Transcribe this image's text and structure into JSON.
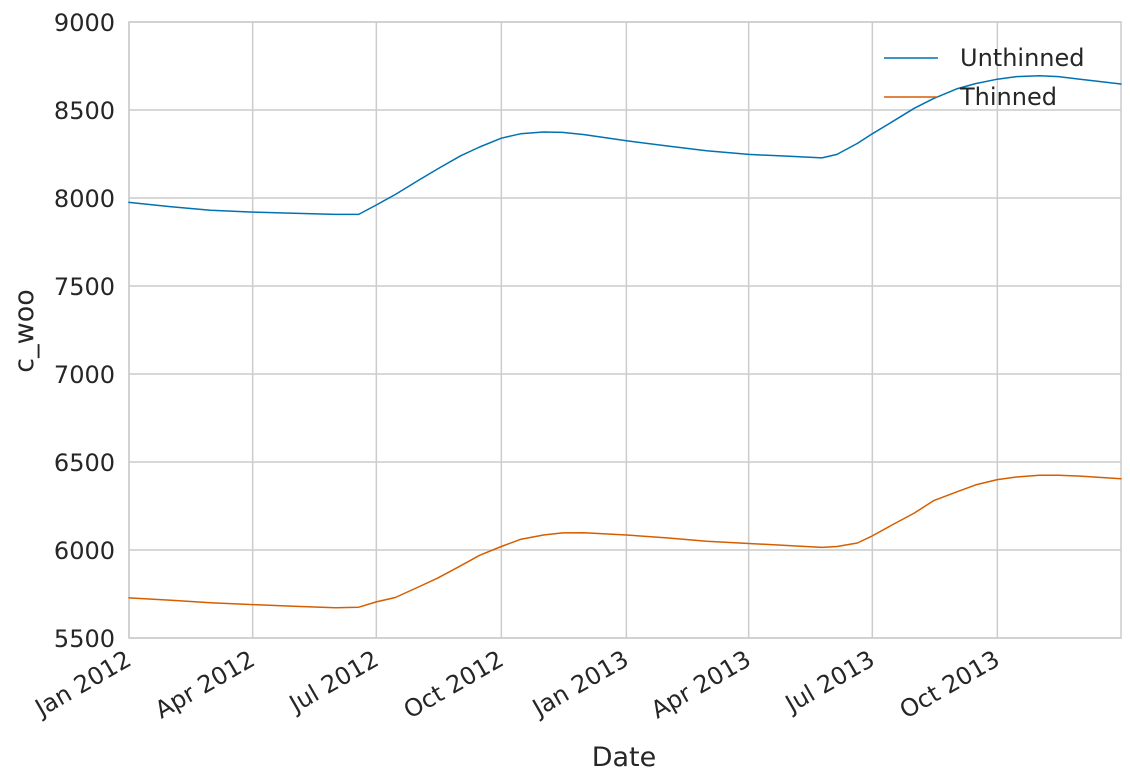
{
  "chart_data": {
    "type": "line",
    "title": "",
    "xlabel": "Date",
    "ylabel": "c_woo",
    "xlim": [
      "2012-01-01",
      "2013-12-31"
    ],
    "ylim": [
      5500,
      9000
    ],
    "grid": true,
    "legend_position": "top-right",
    "y_ticks": [
      5500,
      6000,
      6500,
      7000,
      7500,
      8000,
      8500,
      9000
    ],
    "x_ticks": [
      {
        "date": "2012-01-01",
        "label": "Jan 2012"
      },
      {
        "date": "2012-04-01",
        "label": "Apr 2012"
      },
      {
        "date": "2012-07-01",
        "label": "Jul 2012"
      },
      {
        "date": "2012-10-01",
        "label": "Oct 2012"
      },
      {
        "date": "2013-01-01",
        "label": "Jan 2013"
      },
      {
        "date": "2013-04-01",
        "label": "Apr 2013"
      },
      {
        "date": "2013-07-01",
        "label": "Jul 2013"
      },
      {
        "date": "2013-10-01",
        "label": "Oct 2013"
      }
    ],
    "series": [
      {
        "name": "Unthinned",
        "color": "#0072b2",
        "points": [
          [
            "2012-01-01",
            7975
          ],
          [
            "2012-02-01",
            7950
          ],
          [
            "2012-03-01",
            7930
          ],
          [
            "2012-04-01",
            7920
          ],
          [
            "2012-05-01",
            7913
          ],
          [
            "2012-06-01",
            7907
          ],
          [
            "2012-06-18",
            7907
          ],
          [
            "2012-07-01",
            7960
          ],
          [
            "2012-07-15",
            8020
          ],
          [
            "2012-08-01",
            8100
          ],
          [
            "2012-08-15",
            8165
          ],
          [
            "2012-09-01",
            8240
          ],
          [
            "2012-09-15",
            8290
          ],
          [
            "2012-10-01",
            8340
          ],
          [
            "2012-10-15",
            8365
          ],
          [
            "2012-11-01",
            8375
          ],
          [
            "2012-11-15",
            8373
          ],
          [
            "2012-12-01",
            8360
          ],
          [
            "2013-01-01",
            8325
          ],
          [
            "2013-02-01",
            8295
          ],
          [
            "2013-03-01",
            8268
          ],
          [
            "2013-04-01",
            8248
          ],
          [
            "2013-05-01",
            8237
          ],
          [
            "2013-05-25",
            8228
          ],
          [
            "2013-06-05",
            8248
          ],
          [
            "2013-06-20",
            8310
          ],
          [
            "2013-07-01",
            8365
          ],
          [
            "2013-07-15",
            8430
          ],
          [
            "2013-08-01",
            8510
          ],
          [
            "2013-08-15",
            8565
          ],
          [
            "2013-09-01",
            8620
          ],
          [
            "2013-09-15",
            8650
          ],
          [
            "2013-10-01",
            8675
          ],
          [
            "2013-10-15",
            8690
          ],
          [
            "2013-11-01",
            8695
          ],
          [
            "2013-11-15",
            8690
          ],
          [
            "2013-12-01",
            8675
          ],
          [
            "2013-12-31",
            8648
          ]
        ]
      },
      {
        "name": "Thinned",
        "color": "#d55e00",
        "points": [
          [
            "2012-01-01",
            5728
          ],
          [
            "2012-02-01",
            5714
          ],
          [
            "2012-03-01",
            5700
          ],
          [
            "2012-04-01",
            5690
          ],
          [
            "2012-05-01",
            5680
          ],
          [
            "2012-06-01",
            5672
          ],
          [
            "2012-06-18",
            5675
          ],
          [
            "2012-07-01",
            5705
          ],
          [
            "2012-07-15",
            5730
          ],
          [
            "2012-08-01",
            5790
          ],
          [
            "2012-08-15",
            5840
          ],
          [
            "2012-09-01",
            5910
          ],
          [
            "2012-09-15",
            5970
          ],
          [
            "2012-10-01",
            6020
          ],
          [
            "2012-10-15",
            6060
          ],
          [
            "2012-11-01",
            6085
          ],
          [
            "2012-11-15",
            6097
          ],
          [
            "2012-12-01",
            6098
          ],
          [
            "2013-01-01",
            6085
          ],
          [
            "2013-02-01",
            6068
          ],
          [
            "2013-03-01",
            6050
          ],
          [
            "2013-04-01",
            6037
          ],
          [
            "2013-05-01",
            6025
          ],
          [
            "2013-05-25",
            6015
          ],
          [
            "2013-06-05",
            6020
          ],
          [
            "2013-06-20",
            6040
          ],
          [
            "2013-07-01",
            6080
          ],
          [
            "2013-07-15",
            6140
          ],
          [
            "2013-08-01",
            6210
          ],
          [
            "2013-08-15",
            6280
          ],
          [
            "2013-09-01",
            6330
          ],
          [
            "2013-09-15",
            6370
          ],
          [
            "2013-10-01",
            6400
          ],
          [
            "2013-10-15",
            6415
          ],
          [
            "2013-11-01",
            6425
          ],
          [
            "2013-11-15",
            6425
          ],
          [
            "2013-12-01",
            6420
          ],
          [
            "2013-12-31",
            6405
          ]
        ]
      }
    ]
  }
}
